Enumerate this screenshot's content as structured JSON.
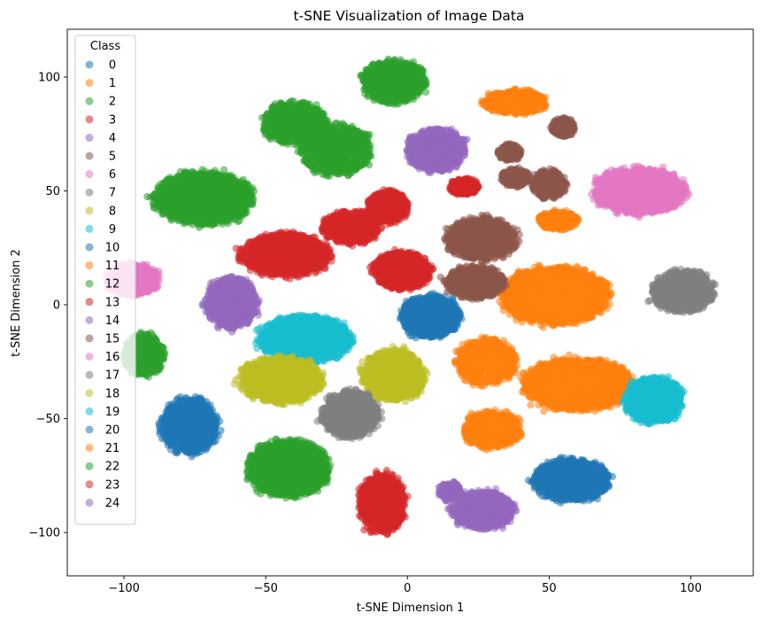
{
  "chart_data": {
    "type": "scatter",
    "title": "t-SNE Visualization of Image Data",
    "xlabel": "t-SNE Dimension 1",
    "ylabel": "t-SNE Dimension 2",
    "xlim": [
      -120,
      122
    ],
    "ylim": [
      -119,
      121
    ],
    "xticks": [
      -100,
      -50,
      0,
      50,
      100
    ],
    "yticks": [
      100,
      50,
      0,
      -50,
      -100
    ],
    "grid": false,
    "legend": {
      "title": "Class",
      "position": "upper-left"
    },
    "series": [
      {
        "name": "0",
        "color": "#1f77b4",
        "clusters": [
          [
            8,
            -5,
            10,
            9,
            1000
          ]
        ]
      },
      {
        "name": "1",
        "color": "#ff7f0e",
        "clusters": [
          [
            38,
            89,
            11,
            5,
            500
          ]
        ]
      },
      {
        "name": "2",
        "color": "#2ca02c",
        "clusters": [
          [
            -5,
            98,
            11,
            9,
            800
          ],
          [
            -40,
            80,
            11,
            9,
            800
          ],
          [
            -25,
            68,
            12,
            11,
            800
          ]
        ]
      },
      {
        "name": "3",
        "color": "#d62728",
        "clusters": [
          [
            -7,
            43,
            7,
            7,
            500
          ],
          [
            20,
            52,
            5,
            3.5,
            300
          ]
        ]
      },
      {
        "name": "4",
        "color": "#9467bd",
        "clusters": [
          [
            10,
            68,
            10,
            9,
            1000
          ]
        ]
      },
      {
        "name": "5",
        "color": "#8c564b",
        "clusters": [
          [
            36,
            67,
            4,
            3.5,
            200
          ],
          [
            55,
            78,
            4,
            4,
            200
          ],
          [
            38,
            56,
            5,
            4,
            200
          ],
          [
            50,
            53,
            6,
            6,
            300
          ]
        ]
      },
      {
        "name": "6",
        "color": "#e377c2",
        "clusters": [
          [
            82,
            50,
            16,
            10,
            1200
          ]
        ]
      },
      {
        "name": "7",
        "color": "#7f7f7f",
        "clusters": [
          [
            97,
            6,
            11,
            9,
            800
          ]
        ]
      },
      {
        "name": "8",
        "color": "#bcbd22",
        "clusters": [
          [
            -5,
            -31,
            11,
            11,
            800
          ]
        ]
      },
      {
        "name": "9",
        "color": "#17becf",
        "clusters": [
          [
            -36,
            -15,
            16,
            10,
            1200
          ]
        ]
      },
      {
        "name": "10",
        "color": "#1f77b4",
        "clusters": [
          [
            -77,
            -53,
            10,
            12,
            800
          ]
        ]
      },
      {
        "name": "11",
        "color": "#ff7f0e",
        "clusters": [
          [
            52,
            4,
            18,
            12,
            2200
          ],
          [
            60,
            -35,
            18,
            11,
            2200
          ],
          [
            28,
            -25,
            10,
            10,
            600
          ],
          [
            30,
            -55,
            10,
            8,
            600
          ],
          [
            53,
            37,
            7,
            4,
            300
          ]
        ]
      },
      {
        "name": "12",
        "color": "#2ca02c",
        "clusters": [
          [
            -72,
            47,
            17,
            11,
            1800
          ],
          [
            -42,
            -72,
            14,
            12,
            1400
          ],
          [
            -93,
            -22,
            7,
            9,
            500
          ]
        ]
      },
      {
        "name": "13",
        "color": "#d62728",
        "clusters": [
          [
            -43,
            22,
            15,
            9,
            1300
          ],
          [
            -20,
            34,
            10,
            7,
            600
          ],
          [
            -2,
            15,
            10,
            8,
            800
          ],
          [
            -9,
            -87,
            8,
            13,
            800
          ]
        ]
      },
      {
        "name": "14",
        "color": "#9467bd",
        "clusters": [
          [
            -62,
            1,
            9,
            11,
            900
          ],
          [
            27,
            -90,
            11,
            8,
            800
          ],
          [
            15,
            -82,
            4,
            4,
            200
          ]
        ]
      },
      {
        "name": "15",
        "color": "#8c564b",
        "clusters": [
          [
            26,
            29,
            12,
            9,
            900
          ],
          [
            24,
            10,
            10,
            7,
            700
          ]
        ]
      },
      {
        "name": "16",
        "color": "#e377c2",
        "clusters": [
          [
            -97,
            11,
            9,
            7,
            600
          ]
        ]
      },
      {
        "name": "17",
        "color": "#7f7f7f",
        "clusters": [
          [
            -20,
            -48,
            10,
            10,
            800
          ]
        ]
      },
      {
        "name": "18",
        "color": "#bcbd22",
        "clusters": [
          [
            -45,
            -33,
            14,
            10,
            1000
          ]
        ]
      },
      {
        "name": "19",
        "color": "#17becf",
        "clusters": [
          [
            87,
            -42,
            10,
            10,
            800
          ]
        ]
      },
      {
        "name": "20",
        "color": "#1f77b4",
        "clusters": [
          [
            58,
            -77,
            13,
            9,
            1000
          ]
        ]
      },
      {
        "name": "21",
        "color": "#ff7f0e",
        "clusters": []
      },
      {
        "name": "22",
        "color": "#2ca02c",
        "clusters": []
      },
      {
        "name": "23",
        "color": "#d62728",
        "clusters": []
      },
      {
        "name": "24",
        "color": "#9467bd",
        "clusters": []
      }
    ]
  }
}
